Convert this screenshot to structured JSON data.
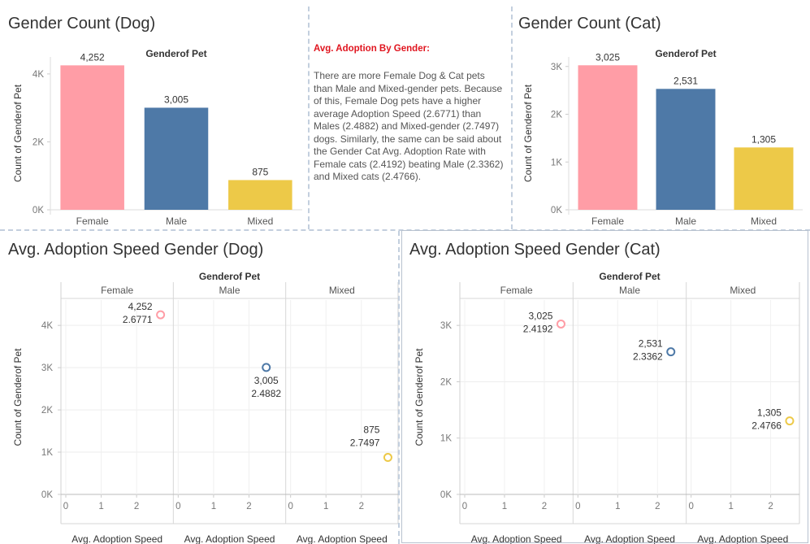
{
  "colors": {
    "female": "#ff9da6",
    "male": "#4e79a7",
    "mixed": "#edc948",
    "note_heading": "#e0151f"
  },
  "notes": {
    "heading": "Avg. Adoption By Gender:",
    "body": "There are more Female Dog & Cat pets than Male and Mixed-gender pets. Because of this, Female Dog pets have a higher average Adoption Speed (2.6771) than Males (2.4882) and Mixed-gender (2.7497) dogs. Similarly, the same can be said about the Gender Cat Avg. Adoption Rate with Female cats (2.4192) beating Male (2.3362) and Mixed cats (2.4766)."
  },
  "chart_data": [
    {
      "type": "bar",
      "title": "Gender Count (Dog)",
      "header": "Genderof Pet",
      "categories": [
        "Female",
        "Male",
        "Mixed"
      ],
      "values": [
        4252,
        3005,
        875
      ],
      "value_labels": [
        "4,252",
        "3,005",
        "875"
      ],
      "ylabel": "Count of Genderof Pet",
      "yticks": [
        0,
        2000,
        4000
      ],
      "ytick_labels": [
        "0K",
        "2K",
        "4K"
      ],
      "ylim": [
        0,
        4500
      ]
    },
    {
      "type": "bar",
      "title": "Gender Count (Cat)",
      "header": "Genderof Pet",
      "categories": [
        "Female",
        "Male",
        "Mixed"
      ],
      "values": [
        3025,
        2531,
        1305
      ],
      "value_labels": [
        "3,025",
        "2,531",
        "1,305"
      ],
      "ylabel": "Count of Genderof Pet",
      "yticks": [
        0,
        1000,
        2000,
        3000
      ],
      "ytick_labels": [
        "0K",
        "1K",
        "2K",
        "3K"
      ],
      "ylim": [
        0,
        3200
      ]
    },
    {
      "type": "scatter",
      "title": "Avg. Adoption Speed Gender (Dog)",
      "header": "Genderof Pet",
      "categories": [
        "Female",
        "Male",
        "Mixed"
      ],
      "points": [
        {
          "x": 2.6771,
          "y": 4252,
          "labels": [
            "4,252",
            "2.6771"
          ]
        },
        {
          "x": 2.4882,
          "y": 3005,
          "labels": [
            "3,005",
            "2.4882"
          ]
        },
        {
          "x": 2.7497,
          "y": 875,
          "labels": [
            "875",
            "2.7497"
          ]
        }
      ],
      "xlabel": "Avg. Adoption Speed",
      "ylabel": "Count of Genderof Pet",
      "xticks": [
        0,
        1,
        2
      ],
      "xlim": [
        0,
        2.9
      ],
      "yticks": [
        0,
        1000,
        2000,
        3000,
        4000
      ],
      "ytick_labels": [
        "0K",
        "1K",
        "2K",
        "3K",
        "4K"
      ],
      "ylim": [
        0,
        4600
      ],
      "grid": true
    },
    {
      "type": "scatter",
      "title": "Avg. Adoption Speed Gender (Cat)",
      "header": "Genderof Pet",
      "categories": [
        "Female",
        "Male",
        "Mixed"
      ],
      "points": [
        {
          "x": 2.4192,
          "y": 3025,
          "labels": [
            "3,025",
            "2.4192"
          ]
        },
        {
          "x": 2.3362,
          "y": 2531,
          "labels": [
            "2,531",
            "2.3362"
          ]
        },
        {
          "x": 2.4766,
          "y": 1305,
          "labels": [
            "1,305",
            "2.4766"
          ]
        }
      ],
      "xlabel": "Avg. Adoption Speed",
      "ylabel": "Count of Genderof Pet",
      "xticks": [
        0,
        1,
        2
      ],
      "xlim": [
        0,
        2.6
      ],
      "yticks": [
        0,
        1000,
        2000,
        3000
      ],
      "ytick_labels": [
        "0K",
        "1K",
        "2K",
        "3K"
      ],
      "ylim": [
        0,
        3450
      ],
      "grid": true
    }
  ]
}
